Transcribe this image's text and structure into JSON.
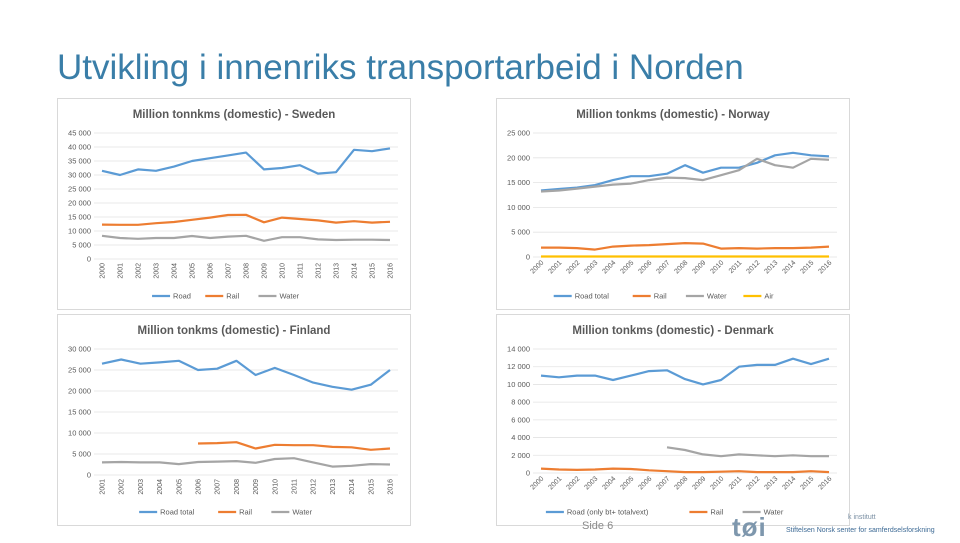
{
  "slide": {
    "title": "Utvikling i innenriks transportarbeid i Norden",
    "page_label": "Side 6",
    "logo_text": "tøi",
    "org_line1": "k institutt",
    "org_line2": "Stiftelsen Norsk senter for samferdselsforskning"
  },
  "colors": {
    "road": "#5b9bd5",
    "rail": "#ed7d31",
    "water": "#a5a5a5",
    "air": "#ffc000",
    "title": "#3a7ea8"
  },
  "chart_data": [
    {
      "id": "sweden",
      "type": "line",
      "title": "Million tonnkms (domestic) - Sweden",
      "x": [
        "2000",
        "2001",
        "2002",
        "2003",
        "2004",
        "2005",
        "2006",
        "2007",
        "2008",
        "2009",
        "2010",
        "2011",
        "2012",
        "2013",
        "2014",
        "2015",
        "2016"
      ],
      "ylim": [
        0,
        45000
      ],
      "yticks": [
        "0",
        "5 000",
        "10 000",
        "15 000",
        "20 000",
        "25 000",
        "30 000",
        "35 000",
        "40 000",
        "45 000"
      ],
      "xlabel_rotation": "vertical",
      "series": [
        {
          "name": "Road",
          "color": "road",
          "values": [
            31500,
            30000,
            32000,
            31500,
            33000,
            35000,
            36000,
            37000,
            38000,
            32000,
            32500,
            33500,
            30500,
            31000,
            39000,
            38500,
            39500
          ]
        },
        {
          "name": "Rail",
          "color": "rail",
          "values": [
            12300,
            12200,
            12200,
            12800,
            13200,
            14000,
            14800,
            15700,
            15800,
            13100,
            14800,
            14300,
            13800,
            13000,
            13500,
            13000,
            13300
          ]
        },
        {
          "name": "Water",
          "color": "water",
          "values": [
            8300,
            7500,
            7200,
            7500,
            7500,
            8200,
            7500,
            8000,
            8300,
            6500,
            7800,
            7800,
            7000,
            6800,
            6900,
            6900,
            6800
          ]
        }
      ]
    },
    {
      "id": "norway",
      "type": "line",
      "title": "Million tonkms (domestic) - Norway",
      "x": [
        "2000",
        "2001",
        "2002",
        "2003",
        "2004",
        "2005",
        "2006",
        "2007",
        "2008",
        "2009",
        "2010",
        "2011",
        "2012",
        "2013",
        "2014",
        "2015",
        "2016"
      ],
      "ylim": [
        0,
        25000
      ],
      "yticks": [
        "0",
        "5 000",
        "10 000",
        "15 000",
        "20 000",
        "25 000"
      ],
      "xlabel_rotation": "diagonal",
      "series": [
        {
          "name": "Road total",
          "color": "road",
          "values": [
            13400,
            13700,
            14000,
            14500,
            15500,
            16300,
            16300,
            16800,
            18500,
            17000,
            18000,
            18000,
            19000,
            20500,
            21000,
            20500,
            20300
          ]
        },
        {
          "name": "Rail",
          "color": "rail",
          "values": [
            1900,
            1900,
            1800,
            1500,
            2100,
            2300,
            2400,
            2600,
            2800,
            2700,
            1700,
            1800,
            1700,
            1800,
            1800,
            1900,
            2100
          ]
        },
        {
          "name": "Water",
          "color": "water",
          "values": [
            13200,
            13400,
            13800,
            14200,
            14600,
            14800,
            15500,
            16000,
            15900,
            15500,
            16500,
            17500,
            19800,
            18500,
            18000,
            19800,
            19600
          ]
        },
        {
          "name": "Air",
          "color": "air",
          "values": [
            100,
            100,
            100,
            100,
            100,
            100,
            100,
            100,
            100,
            100,
            100,
            100,
            100,
            100,
            100,
            100,
            100
          ]
        }
      ]
    },
    {
      "id": "finland",
      "type": "line",
      "title": "Million tonkms (domestic) - Finland",
      "x": [
        "2001",
        "2002",
        "2003",
        "2004",
        "2005",
        "2006",
        "2007",
        "2008",
        "2009",
        "2010",
        "2011",
        "2012",
        "2013",
        "2014",
        "2015",
        "2016"
      ],
      "ylim": [
        0,
        30000
      ],
      "yticks": [
        "0",
        "5 000",
        "10 000",
        "15 000",
        "20 000",
        "25 000",
        "30 000"
      ],
      "xlabel_rotation": "vertical",
      "series": [
        {
          "name": "Road total",
          "color": "road",
          "values": [
            26500,
            27500,
            26500,
            26800,
            27200,
            25000,
            25300,
            27200,
            23800,
            25500,
            23800,
            22000,
            21000,
            20300,
            21500,
            25000
          ]
        },
        {
          "name": "Rail",
          "color": "rail",
          "values": [
            null,
            null,
            null,
            null,
            null,
            7500,
            7600,
            7800,
            6300,
            7200,
            7100,
            7100,
            6700,
            6600,
            6000,
            6300
          ]
        },
        {
          "name": "Water",
          "color": "water",
          "values": [
            3000,
            3100,
            3000,
            3000,
            2600,
            3100,
            3200,
            3300,
            2900,
            3800,
            4000,
            3000,
            2000,
            2200,
            2600,
            2500
          ]
        }
      ]
    },
    {
      "id": "denmark",
      "type": "line",
      "title": "Million tonkms (domestic) - Denmark",
      "x": [
        "2000",
        "2001",
        "2002",
        "2003",
        "2004",
        "2005",
        "2006",
        "2007",
        "2008",
        "2009",
        "2010",
        "2011",
        "2012",
        "2013",
        "2014",
        "2015",
        "2016"
      ],
      "ylim": [
        0,
        14000
      ],
      "yticks": [
        "0",
        "2 000",
        "4 000",
        "6 000",
        "8 000",
        "10 000",
        "12 000",
        "14 000"
      ],
      "xlabel_rotation": "diagonal",
      "series": [
        {
          "name": "Road (only bt+ totalvext)",
          "color": "road",
          "values": [
            11000,
            10800,
            11000,
            11000,
            10500,
            11000,
            11500,
            11600,
            10600,
            10000,
            10500,
            12000,
            12200,
            12200,
            12900,
            12300,
            12900
          ]
        },
        {
          "name": "Rail",
          "color": "rail",
          "values": [
            500,
            400,
            350,
            400,
            500,
            450,
            300,
            200,
            100,
            100,
            150,
            200,
            100,
            100,
            100,
            200,
            100
          ]
        },
        {
          "name": "Water",
          "color": "water",
          "values": [
            null,
            null,
            null,
            null,
            null,
            null,
            null,
            2900,
            2600,
            2100,
            1900,
            2100,
            2000,
            1900,
            2000,
            1900,
            1900
          ]
        }
      ]
    }
  ]
}
